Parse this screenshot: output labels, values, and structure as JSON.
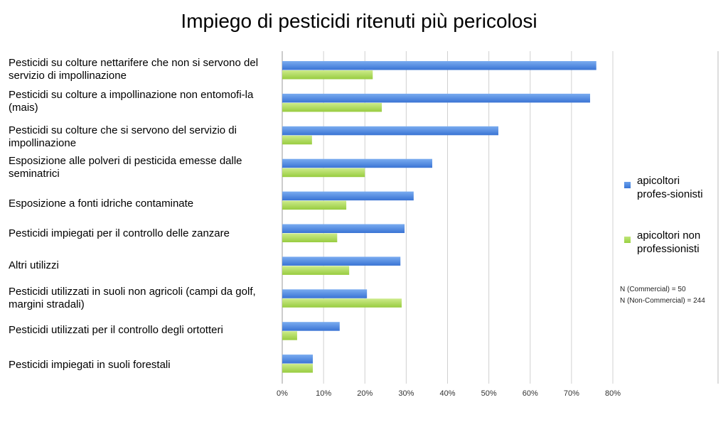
{
  "chart_data": {
    "type": "bar",
    "orientation": "horizontal",
    "title": "Impiego di pesticidi ritenuti più pericolosi",
    "categories": [
      "Pesticidi su colture nettarifere che non si servono del servizio di impollinazione",
      "Pesticidi su colture a impollinazione non entomofi-la (mais)",
      "Pesticidi su colture che si servono del servizio di impollinazione",
      "Esposizione alle polveri di pesticida emesse dalle seminatrici",
      "Esposizione a fonti idriche contaminate",
      "Pesticidi impiegati per il controllo delle zanzare",
      "Altri utilizzi",
      "Pesticidi utilizzati in suoli non agricoli (campi da golf, margini stradali)",
      "Pesticidi utilizzati per il controllo degli ortotteri",
      "Pesticidi impiegati in suoli forestali"
    ],
    "series": [
      {
        "name": "apicoltori profes-sionisti",
        "color": "#4a86e0",
        "values": [
          76,
          74.5,
          52.3,
          36.3,
          31.8,
          29.6,
          28.6,
          20.5,
          13.9,
          7.4
        ]
      },
      {
        "name": "apicoltori non professionisti",
        "color": "#a6d84c",
        "values": [
          21.9,
          24.1,
          7.2,
          20,
          15.5,
          13.3,
          16.2,
          28.9,
          3.6,
          7.4
        ]
      }
    ],
    "xlim": [
      0,
      80
    ],
    "xticks": [
      "0%",
      "10%",
      "20%",
      "30%",
      "40%",
      "50%",
      "60%",
      "70%",
      "80%"
    ],
    "grid": true,
    "legend_placement": "right",
    "notes": [
      "N (Commercial) = 50",
      "N (Non-Commercial) = 244"
    ]
  }
}
